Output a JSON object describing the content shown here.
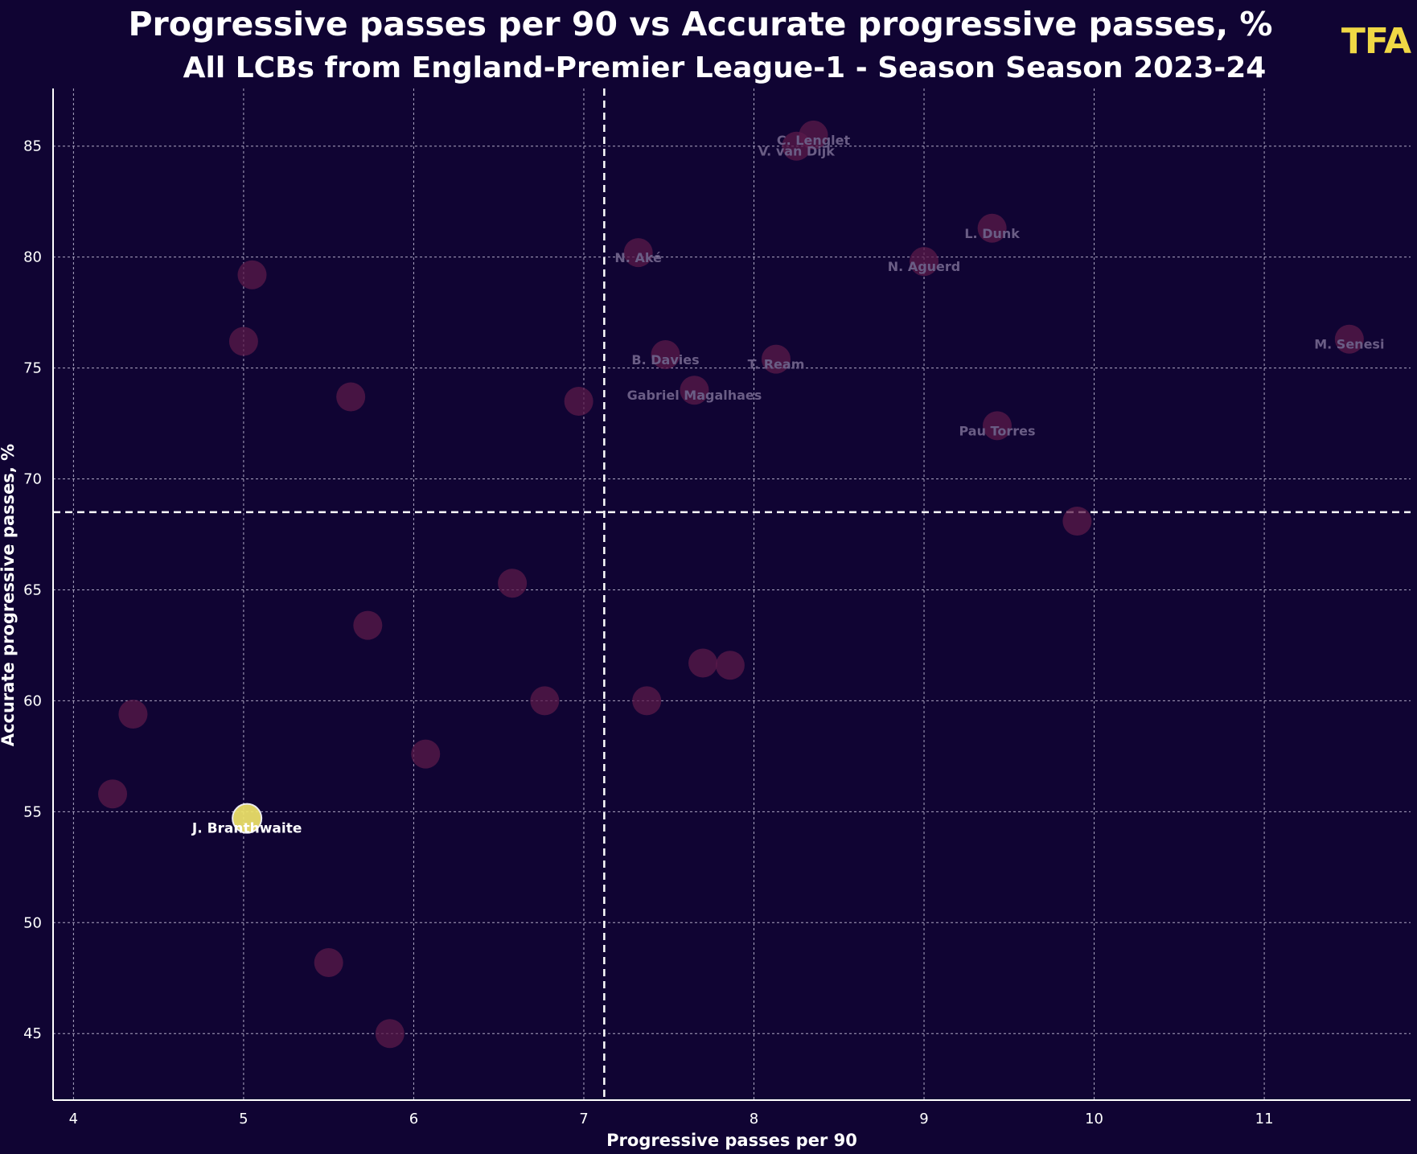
{
  "header": {
    "title": "Progressive passes per 90 vs Accurate progressive passes, %",
    "subtitle": "All LCBs from England-Premier League-1 - Season Season 2023-24",
    "logo": "TFA"
  },
  "colors": {
    "background": "#100433",
    "grid": "#c9c3dc",
    "point": "#5a1a4a",
    "highlight": "#f0e46a",
    "logo": "#f0d845"
  },
  "chart_data": {
    "type": "scatter",
    "xlabel": "Progressive passes per 90",
    "ylabel": "Accurate progressive passes, %",
    "xlim": [
      3.88,
      11.86
    ],
    "ylim": [
      42.0,
      87.6
    ],
    "xticks": [
      4,
      5,
      6,
      7,
      8,
      9,
      10,
      11
    ],
    "yticks": [
      45,
      50,
      55,
      60,
      65,
      70,
      75,
      80,
      85
    ],
    "grid": true,
    "mean_x": 7.12,
    "mean_y": 68.5,
    "points": [
      {
        "x": 8.35,
        "y": 85.5,
        "label": "C. Lenglet"
      },
      {
        "x": 8.25,
        "y": 85.0,
        "label": "V. van Dijk"
      },
      {
        "x": 9.4,
        "y": 81.3,
        "label": "L. Dunk"
      },
      {
        "x": 7.32,
        "y": 80.2,
        "label": "N. Aké"
      },
      {
        "x": 9.0,
        "y": 79.8,
        "label": "N. Aguerd"
      },
      {
        "x": 5.05,
        "y": 79.2,
        "label": ""
      },
      {
        "x": 5.0,
        "y": 76.2,
        "label": ""
      },
      {
        "x": 11.5,
        "y": 76.3,
        "label": "M. Senesi"
      },
      {
        "x": 7.48,
        "y": 75.6,
        "label": "B. Davies"
      },
      {
        "x": 8.13,
        "y": 75.4,
        "label": "T. Ream"
      },
      {
        "x": 7.65,
        "y": 74.0,
        "label": "Gabriel Magalhaes"
      },
      {
        "x": 5.63,
        "y": 73.7,
        "label": ""
      },
      {
        "x": 6.97,
        "y": 73.5,
        "label": ""
      },
      {
        "x": 9.43,
        "y": 72.4,
        "label": "Pau Torres"
      },
      {
        "x": 9.9,
        "y": 68.1,
        "label": ""
      },
      {
        "x": 6.58,
        "y": 65.3,
        "label": ""
      },
      {
        "x": 5.73,
        "y": 63.4,
        "label": ""
      },
      {
        "x": 7.7,
        "y": 61.7,
        "label": ""
      },
      {
        "x": 7.86,
        "y": 61.6,
        "label": ""
      },
      {
        "x": 6.77,
        "y": 60.0,
        "label": ""
      },
      {
        "x": 7.37,
        "y": 60.0,
        "label": ""
      },
      {
        "x": 4.35,
        "y": 59.4,
        "label": ""
      },
      {
        "x": 6.07,
        "y": 57.6,
        "label": ""
      },
      {
        "x": 4.23,
        "y": 55.8,
        "label": ""
      },
      {
        "x": 5.02,
        "y": 54.7,
        "label": "J. Branthwaite",
        "highlight": true
      },
      {
        "x": 5.5,
        "y": 48.2,
        "label": ""
      },
      {
        "x": 5.86,
        "y": 45.0,
        "label": ""
      }
    ]
  }
}
